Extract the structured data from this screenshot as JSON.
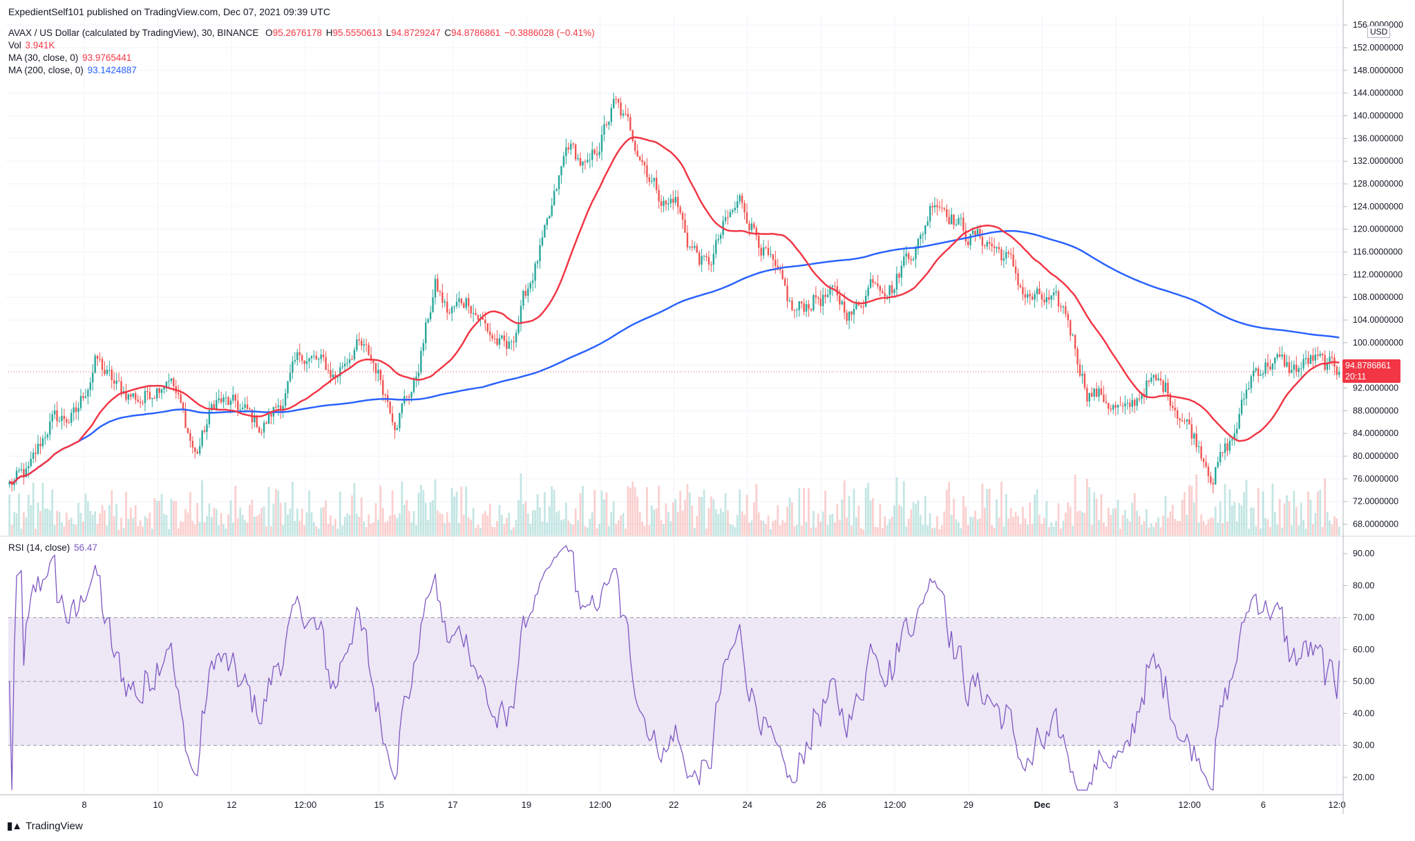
{
  "publisher": "ExpedientSelf101 published on TradingView.com, Dec 07, 2021 09:39 UTC",
  "legend": {
    "symbol": "AVAX / US Dollar (calculated by TradingView), 30, BINANCE",
    "open_label": "O",
    "open": "95.2676178",
    "high_label": "H",
    "high": "95.5550613",
    "low_label": "L",
    "low": "94.8729247",
    "close_label": "C",
    "close": "94.8786861",
    "change": "−0.3886028 (−0.41%)",
    "vol_label": "Vol",
    "vol": "3.941K",
    "ma30_label": "MA (30, close, 0)",
    "ma30": "93.9765441",
    "ma200_label": "MA (200, close, 0)",
    "ma200": "93.1424887",
    "rsi_label": "RSI (14, close)",
    "rsi": "56.47"
  },
  "currency": "USD",
  "last_price_tag": {
    "price": "94.8786861",
    "countdown": "20:11"
  },
  "brand": "TradingView",
  "colors": {
    "up": "#26a69a",
    "down": "#ef5350",
    "ma30": "#f23645",
    "ma200": "#2962ff",
    "rsi": "#7e57c2",
    "rsi_band": "#ede7f6"
  },
  "chart_data": [
    {
      "type": "candlestick",
      "title": "AVAX / US Dollar, 30, BINANCE",
      "x_ticks": [
        "8",
        "10",
        "12",
        "12:00",
        "15",
        "17",
        "19",
        "12:00",
        "22",
        "24",
        "26",
        "12:00",
        "29",
        "Dec",
        "3",
        "12:00",
        "6",
        "12:0"
      ],
      "y_ticks": [
        "68.0000000",
        "72.0000000",
        "76.0000000",
        "80.0000000",
        "84.0000000",
        "88.0000000",
        "92.0000000",
        "96.0000000",
        "100.0000000",
        "104.0000000",
        "108.0000000",
        "112.0000000",
        "116.0000000",
        "120.0000000",
        "124.0000000",
        "128.0000000",
        "132.0000000",
        "136.0000000",
        "140.0000000",
        "144.0000000",
        "148.0000000",
        "152.0000000",
        "156.0000000"
      ],
      "ylim": [
        66,
        157
      ],
      "close_path": {
        "x": [
          0,
          0.015,
          0.03,
          0.05,
          0.065,
          0.08,
          0.1,
          0.12,
          0.14,
          0.155,
          0.175,
          0.19,
          0.205,
          0.22,
          0.235,
          0.245,
          0.26,
          0.275,
          0.29,
          0.305,
          0.32,
          0.33,
          0.345,
          0.36,
          0.375,
          0.39,
          0.405,
          0.42,
          0.435,
          0.455,
          0.47,
          0.485,
          0.495,
          0.5,
          0.51,
          0.525,
          0.537,
          0.55,
          0.565,
          0.575,
          0.59,
          0.605,
          0.62,
          0.635,
          0.65,
          0.665,
          0.675,
          0.685,
          0.695,
          0.705,
          0.72,
          0.735,
          0.75,
          0.765,
          0.78,
          0.795,
          0.81,
          0.825,
          0.84,
          0.855,
          0.87,
          0.885,
          0.895,
          0.905,
          0.92,
          0.935,
          0.95,
          0.965,
          0.98,
          0.99,
          1
        ],
        "y": [
          75,
          77,
          86,
          87,
          97,
          92,
          90,
          95,
          80,
          90,
          88,
          85,
          90,
          98,
          96,
          94,
          100,
          96,
          87,
          93,
          110,
          105,
          108,
          102,
          98,
          110,
          120,
          135,
          130,
          142,
          136,
          128,
          124,
          126,
          118,
          113,
          120,
          125,
          118,
          112,
          105,
          108,
          108,
          105,
          112,
          110,
          116,
          118,
          126,
          124,
          119,
          118,
          115,
          108,
          107,
          105,
          92,
          90,
          87,
          93,
          92,
          86,
          82,
          77,
          83,
          95,
          97,
          95,
          97,
          95.5,
          94.88
        ]
      },
      "ma30": {
        "label": "MA (30, close, 0)",
        "last": 93.9765441
      },
      "ma200": {
        "label": "MA (200, close, 0)",
        "last": 93.1424887
      },
      "last_price": 94.8786861
    },
    {
      "type": "line",
      "title": "RSI (14, close)",
      "y_ticks": [
        "20.00",
        "30.00",
        "40.00",
        "50.00",
        "60.00",
        "70.00",
        "80.00",
        "90.00"
      ],
      "ylim": [
        15,
        95
      ],
      "band": [
        30,
        70
      ],
      "midline": 50,
      "last": 56.47
    }
  ]
}
